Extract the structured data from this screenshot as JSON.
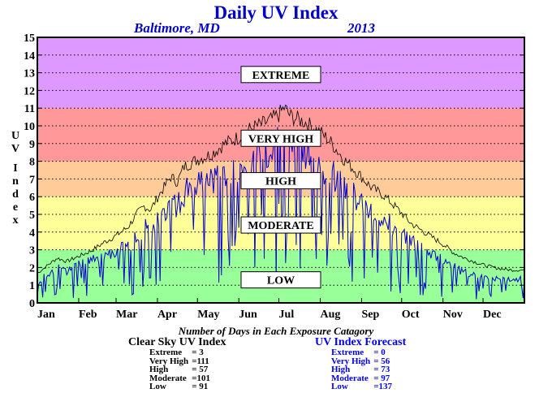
{
  "title": "Daily UV Index",
  "subtitle_location": "Baltimore, MD",
  "subtitle_year": "2013",
  "counts_title": "Number of Days in Each Exposure Catagory",
  "clear_sky": {
    "title": "Clear Sky UV Index",
    "rows": [
      {
        "label": "Extreme",
        "value": "=   3"
      },
      {
        "label": "Very High",
        "value": "=111"
      },
      {
        "label": "High",
        "value": "=  57"
      },
      {
        "label": "Moderate",
        "value": "=101"
      },
      {
        "label": "Low",
        "value": "=  91"
      }
    ]
  },
  "forecast": {
    "title": "UV Index Forecast",
    "rows": [
      {
        "label": "Extreme",
        "value": "=   0"
      },
      {
        "label": "Very High",
        "value": "=  56"
      },
      {
        "label": "High",
        "value": "=  73"
      },
      {
        "label": "Moderate",
        "value": "=  97"
      },
      {
        "label": "Low",
        "value": "=137"
      }
    ]
  },
  "chart_data": {
    "type": "line",
    "title": "Daily UV Index",
    "ylabel": "UV Index",
    "ylim": [
      0,
      15
    ],
    "xlim": [
      0,
      365
    ],
    "yticks": [
      "0",
      "1",
      "2",
      "3",
      "4",
      "5",
      "6",
      "7",
      "8",
      "9",
      "10",
      "11",
      "12",
      "13",
      "14",
      "15"
    ],
    "grid": true,
    "months": [
      {
        "label": "Jan",
        "day": 0
      },
      {
        "label": "Feb",
        "day": 31
      },
      {
        "label": "Mar",
        "day": 59
      },
      {
        "label": "Apr",
        "day": 90
      },
      {
        "label": "May",
        "day": 120
      },
      {
        "label": "Jun",
        "day": 151
      },
      {
        "label": "Jul",
        "day": 181
      },
      {
        "label": "Aug",
        "day": 212
      },
      {
        "label": "Sep",
        "day": 243
      },
      {
        "label": "Oct",
        "day": 273
      },
      {
        "label": "Nov",
        "day": 304
      },
      {
        "label": "Dec",
        "day": 334
      }
    ],
    "bands": [
      {
        "label": "LOW",
        "from": 0,
        "to": 3,
        "color": "#99ff99",
        "label_y": 1.3
      },
      {
        "label": "MODERATE",
        "from": 3,
        "to": 6,
        "color": "#ffff99",
        "label_y": 4.4
      },
      {
        "label": "HIGH",
        "from": 6,
        "to": 8,
        "color": "#ffcc99",
        "label_y": 6.9
      },
      {
        "label": "VERY HIGH",
        "from": 8,
        "to": 11,
        "color": "#ff9999",
        "label_y": 9.3
      },
      {
        "label": "EXTREME",
        "from": 11,
        "to": 15,
        "color": "#dd99ff",
        "label_y": 12.9
      }
    ],
    "series": [
      {
        "color": "#000000",
        "points": [
          [
            0,
            1.7
          ],
          [
            8,
            2.2
          ],
          [
            15,
            2.6
          ],
          [
            22,
            2.4
          ],
          [
            31,
            2.7
          ],
          [
            40,
            3.0
          ],
          [
            50,
            3.5
          ],
          [
            59,
            3.9
          ],
          [
            68,
            4.4
          ],
          [
            75,
            5.2
          ],
          [
            80,
            5.6
          ],
          [
            85,
            5.4
          ],
          [
            90,
            6.1
          ],
          [
            100,
            7.3
          ],
          [
            105,
            7.0
          ],
          [
            110,
            7.9
          ],
          [
            120,
            8.3
          ],
          [
            130,
            8.6
          ],
          [
            140,
            9.2
          ],
          [
            151,
            9.6
          ],
          [
            160,
            10.1
          ],
          [
            170,
            10.4
          ],
          [
            175,
            10.6
          ],
          [
            181,
            10.9
          ],
          [
            185,
            11.3
          ],
          [
            190,
            10.8
          ],
          [
            200,
            10.5
          ],
          [
            212,
            9.9
          ],
          [
            220,
            9.3
          ],
          [
            230,
            8.3
          ],
          [
            243,
            7.3
          ],
          [
            250,
            6.7
          ],
          [
            260,
            6.2
          ],
          [
            273,
            5.2
          ],
          [
            280,
            4.6
          ],
          [
            290,
            4.1
          ],
          [
            304,
            3.4
          ],
          [
            312,
            2.9
          ],
          [
            320,
            2.6
          ],
          [
            334,
            2.2
          ],
          [
            345,
            2.0
          ],
          [
            355,
            1.9
          ],
          [
            365,
            1.9
          ]
        ]
      },
      {
        "color": "#0000cc",
        "points": [
          [
            0,
            1.2
          ],
          [
            8,
            1.8
          ],
          [
            15,
            2.2
          ],
          [
            22,
            1.9
          ],
          [
            31,
            2.3
          ],
          [
            40,
            2.6
          ],
          [
            50,
            2.8
          ],
          [
            59,
            3.2
          ],
          [
            68,
            3.4
          ],
          [
            75,
            4.3
          ],
          [
            80,
            4.6
          ],
          [
            85,
            4.5
          ],
          [
            90,
            5.1
          ],
          [
            100,
            6.2
          ],
          [
            105,
            6.0
          ],
          [
            110,
            6.8
          ],
          [
            120,
            7.1
          ],
          [
            130,
            7.4
          ],
          [
            140,
            7.8
          ],
          [
            151,
            8.2
          ],
          [
            160,
            8.6
          ],
          [
            170,
            9.2
          ],
          [
            175,
            9.4
          ],
          [
            181,
            9.8
          ],
          [
            185,
            9.6
          ],
          [
            190,
            9.6
          ],
          [
            200,
            9.2
          ],
          [
            212,
            8.6
          ],
          [
            220,
            7.9
          ],
          [
            230,
            7.0
          ],
          [
            243,
            6.2
          ],
          [
            250,
            5.6
          ],
          [
            260,
            5.1
          ],
          [
            273,
            4.3
          ],
          [
            280,
            3.8
          ],
          [
            290,
            3.3
          ],
          [
            304,
            2.7
          ],
          [
            312,
            2.2
          ],
          [
            320,
            1.9
          ],
          [
            334,
            1.6
          ],
          [
            345,
            1.5
          ],
          [
            355,
            1.4
          ],
          [
            365,
            1.5
          ]
        ]
      }
    ]
  }
}
